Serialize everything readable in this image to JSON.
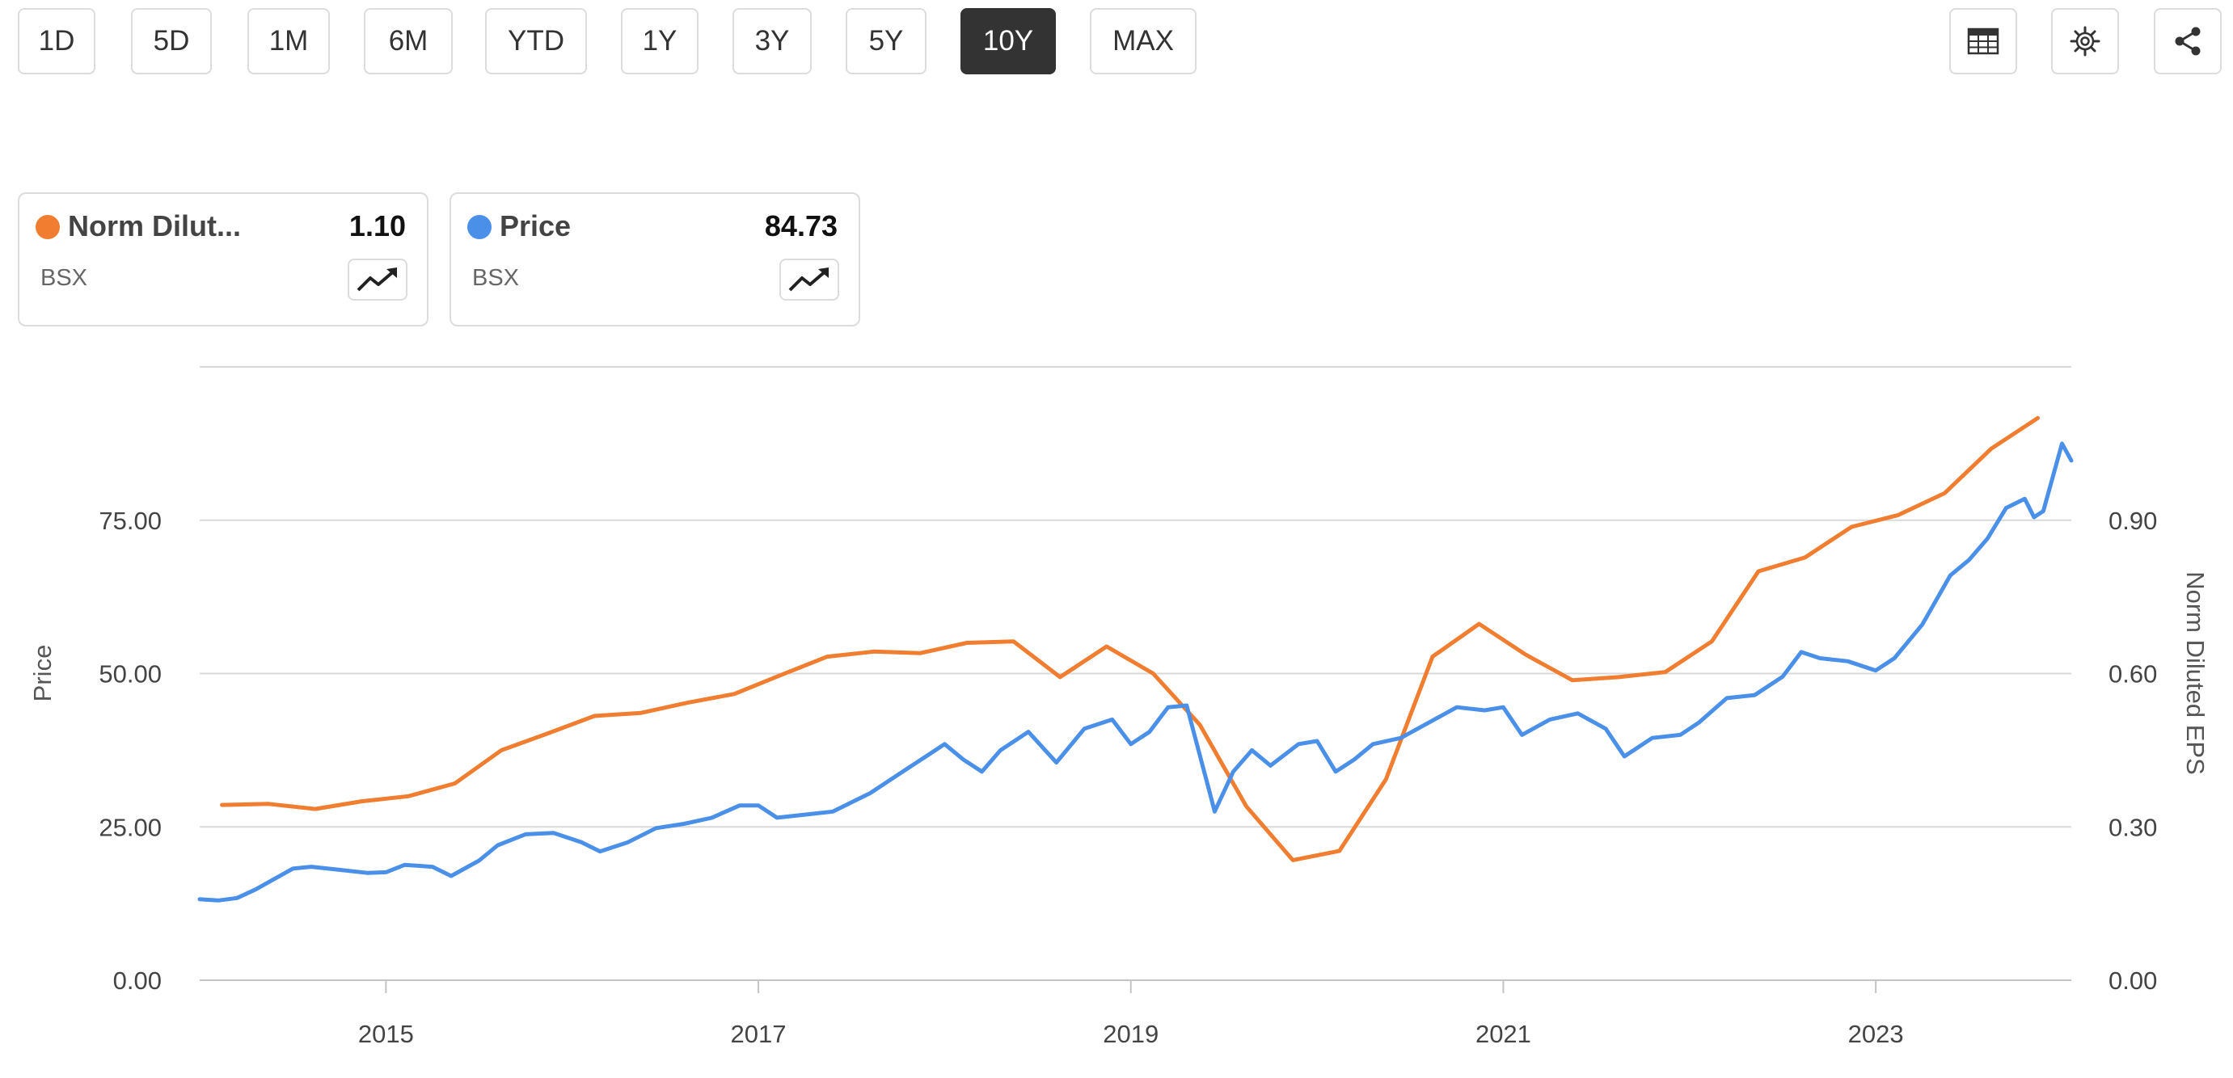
{
  "toolbar": {
    "ranges": [
      "1D",
      "5D",
      "1M",
      "6M",
      "YTD",
      "1Y",
      "3Y",
      "5Y",
      "10Y",
      "MAX"
    ],
    "active_range": "10Y",
    "tools": [
      "table-icon",
      "gear-icon",
      "share-icon"
    ]
  },
  "legend": [
    {
      "name": "Norm Dilut...",
      "value": "1.10",
      "ticker": "BSX",
      "color": "#f07d30",
      "icon": "trend-up-icon"
    },
    {
      "name": "Price",
      "value": "84.73",
      "ticker": "BSX",
      "color": "#4a90e8",
      "icon": "trend-up-icon"
    }
  ],
  "chart_data": {
    "type": "line",
    "left_axis": {
      "label": "Price",
      "ticks": [
        "0.00",
        "25.00",
        "50.00",
        "75.00"
      ],
      "range": [
        0,
        100
      ]
    },
    "right_axis": {
      "label": "Norm Diluted EPS",
      "ticks": [
        "0.00",
        "0.30",
        "0.60",
        "0.90"
      ],
      "range": [
        0,
        1.2
      ]
    },
    "x_ticks": [
      "2015",
      "2017",
      "2019",
      "2021",
      "2023"
    ],
    "x_range": [
      2014.0,
      2024.05
    ],
    "grid": true,
    "series": [
      {
        "name": "Price",
        "axis": "left",
        "color": "#4a90e8",
        "points": [
          [
            2014.0,
            13.2
          ],
          [
            2014.1,
            13.0
          ],
          [
            2014.2,
            13.4
          ],
          [
            2014.3,
            14.8
          ],
          [
            2014.4,
            16.5
          ],
          [
            2014.5,
            18.2
          ],
          [
            2014.6,
            18.5
          ],
          [
            2014.75,
            18.0
          ],
          [
            2014.9,
            17.5
          ],
          [
            2015.0,
            17.6
          ],
          [
            2015.1,
            18.8
          ],
          [
            2015.25,
            18.5
          ],
          [
            2015.35,
            17.0
          ],
          [
            2015.5,
            19.5
          ],
          [
            2015.6,
            22.0
          ],
          [
            2015.75,
            23.8
          ],
          [
            2015.9,
            24.0
          ],
          [
            2016.05,
            22.5
          ],
          [
            2016.15,
            21.0
          ],
          [
            2016.3,
            22.5
          ],
          [
            2016.45,
            24.8
          ],
          [
            2016.6,
            25.5
          ],
          [
            2016.75,
            26.5
          ],
          [
            2016.9,
            28.5
          ],
          [
            2017.0,
            28.5
          ],
          [
            2017.1,
            26.5
          ],
          [
            2017.25,
            27.0
          ],
          [
            2017.4,
            27.5
          ],
          [
            2017.5,
            29.0
          ],
          [
            2017.6,
            30.5
          ],
          [
            2017.75,
            33.5
          ],
          [
            2017.9,
            36.5
          ],
          [
            2018.0,
            38.5
          ],
          [
            2018.1,
            36.0
          ],
          [
            2018.2,
            34.0
          ],
          [
            2018.3,
            37.5
          ],
          [
            2018.45,
            40.5
          ],
          [
            2018.6,
            35.5
          ],
          [
            2018.75,
            41.0
          ],
          [
            2018.9,
            42.5
          ],
          [
            2019.0,
            38.5
          ],
          [
            2019.1,
            40.5
          ],
          [
            2019.2,
            44.5
          ],
          [
            2019.3,
            44.8
          ],
          [
            2019.35,
            39.0
          ],
          [
            2019.42,
            31.0
          ],
          [
            2019.45,
            27.5
          ],
          [
            2019.55,
            34.0
          ],
          [
            2019.65,
            37.5
          ],
          [
            2019.75,
            35.0
          ],
          [
            2019.9,
            38.5
          ],
          [
            2020.0,
            39.0
          ],
          [
            2020.1,
            34.0
          ],
          [
            2020.2,
            36.0
          ],
          [
            2020.3,
            38.5
          ],
          [
            2020.45,
            39.5
          ],
          [
            2020.6,
            42.0
          ],
          [
            2020.75,
            44.5
          ],
          [
            2020.9,
            44.0
          ],
          [
            2021.0,
            44.5
          ],
          [
            2021.1,
            40.0
          ],
          [
            2021.25,
            42.5
          ],
          [
            2021.4,
            43.5
          ],
          [
            2021.55,
            41.0
          ],
          [
            2021.65,
            36.5
          ],
          [
            2021.8,
            39.5
          ],
          [
            2021.95,
            40.0
          ],
          [
            2022.05,
            42.0
          ],
          [
            2022.2,
            46.0
          ],
          [
            2022.35,
            46.5
          ],
          [
            2022.5,
            49.5
          ],
          [
            2022.6,
            53.5
          ],
          [
            2022.7,
            52.5
          ],
          [
            2022.85,
            52.0
          ],
          [
            2023.0,
            50.5
          ],
          [
            2023.1,
            52.5
          ],
          [
            2023.25,
            58.0
          ],
          [
            2023.4,
            66.0
          ],
          [
            2023.5,
            68.5
          ],
          [
            2023.6,
            72.0
          ],
          [
            2023.7,
            77.0
          ],
          [
            2023.8,
            78.5
          ],
          [
            2023.85,
            75.5
          ],
          [
            2023.9,
            76.5
          ],
          [
            2023.95,
            82.0
          ],
          [
            2024.0,
            87.5
          ],
          [
            2024.05,
            84.73
          ]
        ]
      },
      {
        "name": "Norm Diluted EPS",
        "axis": "right",
        "color": "#f07d30",
        "points": [
          [
            2014.12,
            0.343
          ],
          [
            2014.37,
            0.345
          ],
          [
            2014.62,
            0.335
          ],
          [
            2014.87,
            0.35
          ],
          [
            2015.12,
            0.36
          ],
          [
            2015.37,
            0.385
          ],
          [
            2015.62,
            0.45
          ],
          [
            2015.87,
            0.483
          ],
          [
            2016.12,
            0.517
          ],
          [
            2016.37,
            0.523
          ],
          [
            2016.62,
            0.543
          ],
          [
            2016.87,
            0.56
          ],
          [
            2017.12,
            0.597
          ],
          [
            2017.37,
            0.633
          ],
          [
            2017.62,
            0.643
          ],
          [
            2017.87,
            0.64
          ],
          [
            2018.12,
            0.66
          ],
          [
            2018.37,
            0.663
          ],
          [
            2018.62,
            0.593
          ],
          [
            2018.87,
            0.653
          ],
          [
            2019.12,
            0.6
          ],
          [
            2019.37,
            0.5
          ],
          [
            2019.62,
            0.34
          ],
          [
            2019.87,
            0.235
          ],
          [
            2020.12,
            0.253
          ],
          [
            2020.37,
            0.393
          ],
          [
            2020.62,
            0.633
          ],
          [
            2020.87,
            0.697
          ],
          [
            2021.12,
            0.637
          ],
          [
            2021.37,
            0.587
          ],
          [
            2021.62,
            0.593
          ],
          [
            2021.87,
            0.603
          ],
          [
            2022.12,
            0.663
          ],
          [
            2022.37,
            0.8
          ],
          [
            2022.62,
            0.827
          ],
          [
            2022.87,
            0.887
          ],
          [
            2023.12,
            0.91
          ],
          [
            2023.37,
            0.953
          ],
          [
            2023.62,
            1.04
          ],
          [
            2023.87,
            1.1
          ]
        ]
      }
    ]
  }
}
